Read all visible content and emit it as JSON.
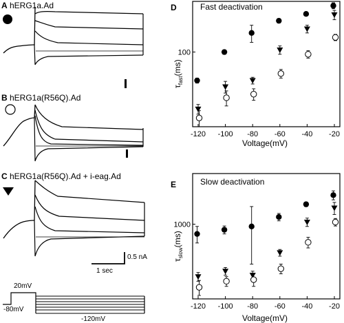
{
  "traces": {
    "A": {
      "letter": "A",
      "label": "hERG1a.Ad",
      "symbol": "filled-circle"
    },
    "B": {
      "letter": "B",
      "label": "hERG1a(R56Q).Ad",
      "symbol": "open-circle"
    },
    "C": {
      "letter": "C",
      "label": "hERG1a(R56Q).Ad + i-eag.Ad",
      "symbol": "filled-triangle-down"
    },
    "scalebar": {
      "current": "0.5 nA",
      "time": "1 sec"
    },
    "protocol": {
      "prepulse": "20mV",
      "holding": "-80mV",
      "test": "-120mV"
    }
  },
  "chart_data": [
    {
      "panel": "D",
      "type": "scatter",
      "title": "Fast deactivation",
      "xlabel": "Voltage(mV)",
      "ylabel_main": "τ",
      "ylabel_sub": "fast",
      "ylabel_unit": "(ms)",
      "x_ticks": [
        "-120",
        "-100",
        "-80",
        "-60",
        "-40",
        "-20"
      ],
      "y_ticks": [
        {
          "value": 100,
          "label": "100"
        }
      ],
      "xlim": [
        -120,
        -20
      ],
      "ylim": [
        18,
        320
      ],
      "yscale": "log",
      "x": [
        -120,
        -100,
        -80,
        -60,
        -40,
        -20
      ],
      "series": [
        {
          "symbol": "filled-circle",
          "values": [
            52,
            100,
            155,
            205,
            240,
            290
          ],
          "err": [
            3,
            5,
            30,
            10,
            10,
            20
          ]
        },
        {
          "symbol": "filled-triangle-down",
          "values": [
            27,
            45,
            52,
            105,
            170,
            235
          ],
          "err": [
            3,
            6,
            4,
            10,
            15,
            25
          ]
        },
        {
          "symbol": "open-circle",
          "values": [
            22,
            35,
            38,
            61,
            95,
            140
          ],
          "err": [
            4,
            6,
            5,
            6,
            8,
            10
          ]
        }
      ]
    },
    {
      "panel": "E",
      "type": "scatter",
      "title": "Slow deactivation",
      "xlabel": "Voltage(mV)",
      "ylabel_main": "τ",
      "ylabel_sub": "slow",
      "ylabel_unit": "(ms)",
      "x_ticks": [
        "-120",
        "-100",
        "-80",
        "-60",
        "-40",
        "-20"
      ],
      "y_ticks": [
        {
          "value": 1000,
          "label": "1000"
        }
      ],
      "xlim": [
        -120,
        -20
      ],
      "ylim": [
        180,
        3200
      ],
      "yscale": "log",
      "x": [
        -120,
        -100,
        -80,
        -60,
        -40,
        -20
      ],
      "series": [
        {
          "symbol": "filled-circle",
          "values": [
            800,
            880,
            950,
            1180,
            1580,
            1950
          ],
          "err": [
            150,
            80,
            550,
            100,
            80,
            200
          ]
        },
        {
          "symbol": "filled-triangle-down",
          "values": [
            300,
            340,
            310,
            520,
            1050,
            1450
          ],
          "err": [
            30,
            30,
            30,
            40,
            100,
            200
          ]
        },
        {
          "symbol": "open-circle",
          "values": [
            235,
            270,
            280,
            360,
            660,
            1050
          ],
          "err": [
            40,
            30,
            40,
            40,
            80,
            90
          ]
        }
      ]
    }
  ]
}
